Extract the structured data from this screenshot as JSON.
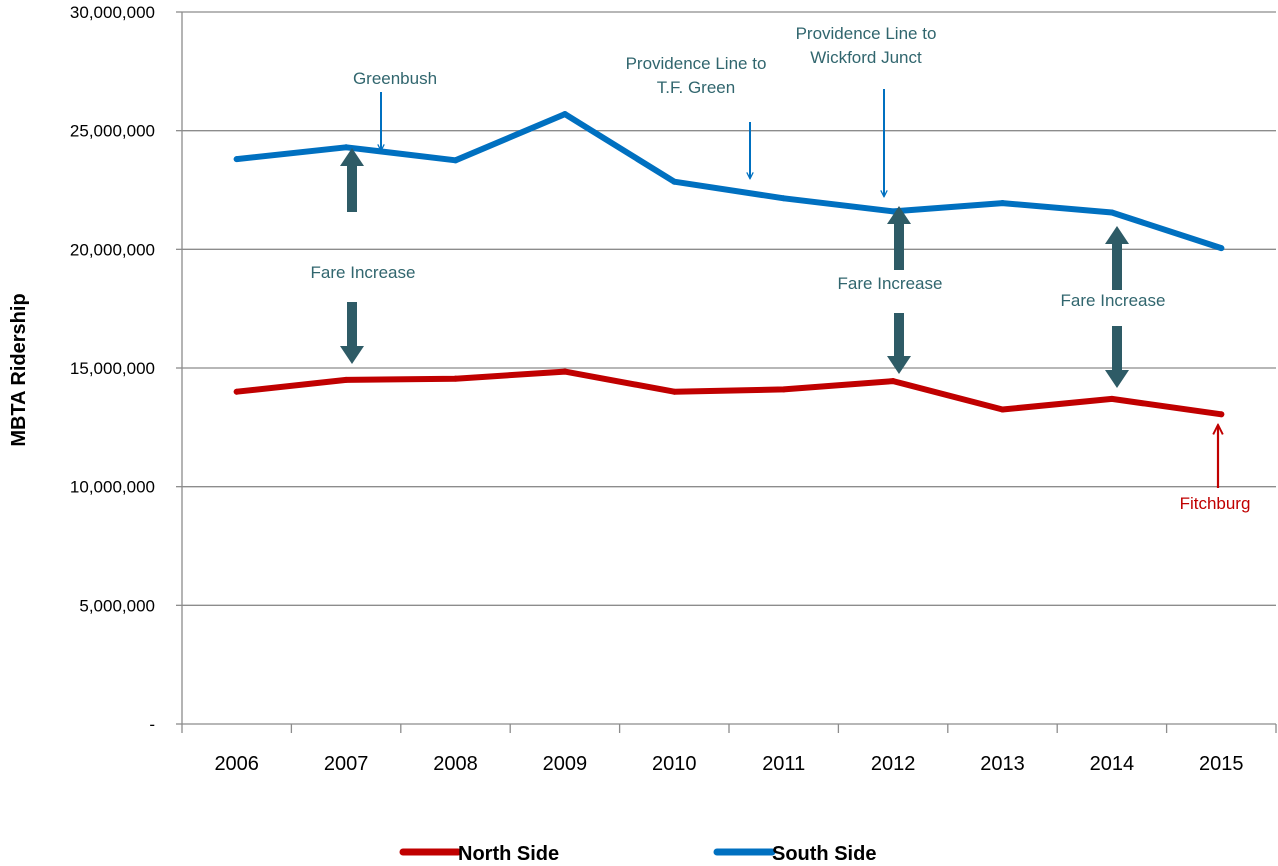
{
  "chart_data": {
    "type": "line",
    "title": "",
    "xlabel": "",
    "ylabel": "MBTA Ridership",
    "categories": [
      "2006",
      "2007",
      "2008",
      "2009",
      "2010",
      "2011",
      "2012",
      "2013",
      "2014",
      "2015"
    ],
    "ylim": [
      0,
      30000000
    ],
    "yticks": [
      {
        "value": 0,
        "label": "-"
      },
      {
        "value": 5000000,
        "label": "5,000,000"
      },
      {
        "value": 10000000,
        "label": "10,000,000"
      },
      {
        "value": 15000000,
        "label": "15,000,000"
      },
      {
        "value": 20000000,
        "label": "20,000,000"
      },
      {
        "value": 25000000,
        "label": "25,000,000"
      },
      {
        "value": 30000000,
        "label": "30,000,000"
      }
    ],
    "grid": true,
    "legend_position": "bottom",
    "series": [
      {
        "name": "North Side",
        "color": "#C00000",
        "values": [
          14000000,
          14500000,
          14550000,
          14850000,
          14000000,
          14100000,
          14450000,
          13250000,
          13700000,
          13050000
        ]
      },
      {
        "name": "South Side",
        "color": "#0070C0",
        "values": [
          23800000,
          24300000,
          23750000,
          25700000,
          22850000,
          22150000,
          21600000,
          21950000,
          21550000,
          20050000
        ]
      }
    ],
    "annotations": [
      {
        "text": [
          "Greenbush"
        ],
        "color": "#31666E"
      },
      {
        "text": [
          "Providence Line to",
          "T.F. Green"
        ],
        "color": "#31666E"
      },
      {
        "text": [
          "Providence Line to",
          "Wickford Junct"
        ],
        "color": "#31666E"
      },
      {
        "text": [
          "Fare Increase"
        ],
        "color": "#31666E"
      },
      {
        "text": [
          "Fare Increase"
        ],
        "color": "#31666E"
      },
      {
        "text": [
          "Fare Increase"
        ],
        "color": "#31666E"
      },
      {
        "text": [
          "Fitchburg"
        ],
        "color": "#C00000"
      }
    ],
    "arrow_colors": {
      "thin": "#0070C0",
      "thick": "#2E5B66",
      "red": "#C00000"
    }
  }
}
